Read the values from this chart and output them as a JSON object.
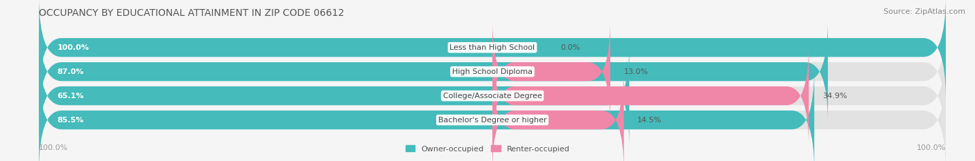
{
  "title": "OCCUPANCY BY EDUCATIONAL ATTAINMENT IN ZIP CODE 06612",
  "source": "Source: ZipAtlas.com",
  "categories": [
    "Less than High School",
    "High School Diploma",
    "College/Associate Degree",
    "Bachelor's Degree or higher"
  ],
  "owner_values": [
    100.0,
    87.0,
    65.1,
    85.5
  ],
  "renter_values": [
    0.0,
    13.0,
    34.9,
    14.5
  ],
  "owner_color": "#45BBBB",
  "renter_color": "#F087A8",
  "bar_bg_color": "#E2E2E2",
  "background_color": "#F5F5F5",
  "title_fontsize": 10,
  "label_fontsize": 8,
  "tick_fontsize": 8,
  "source_fontsize": 8,
  "legend_fontsize": 8,
  "axis_label_left": "100.0%",
  "axis_label_right": "100.0%"
}
